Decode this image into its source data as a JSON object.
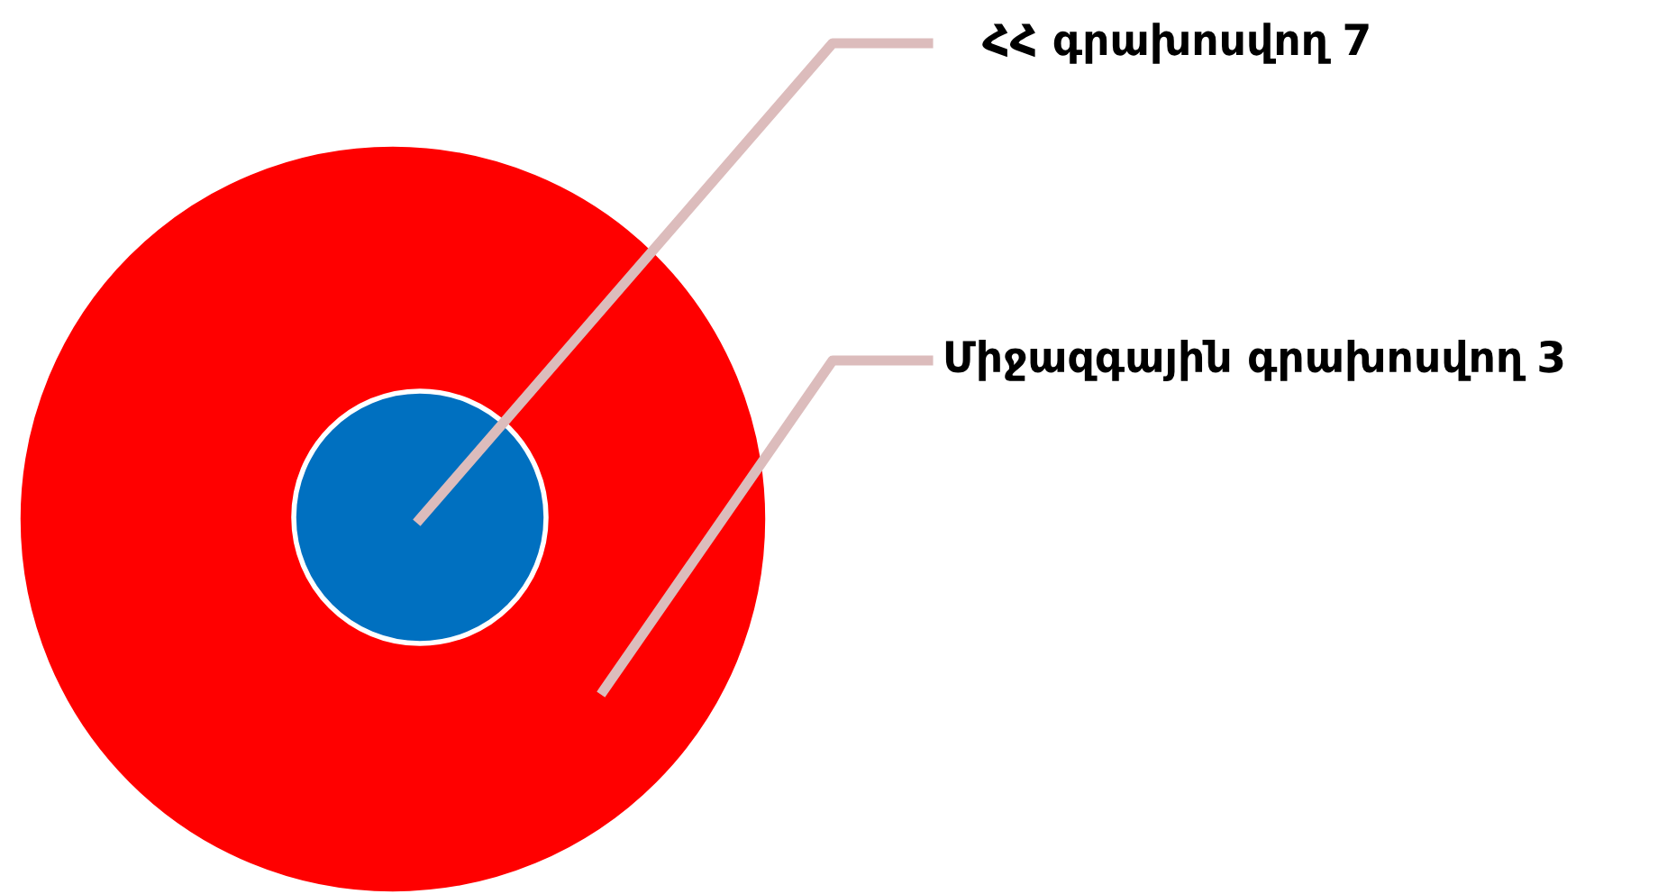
{
  "chart_data": {
    "type": "other",
    "categories": [
      "ՀՀ գրախոսվող",
      "Միջազգային գրախոսվող"
    ],
    "values": [
      7,
      3
    ],
    "colors": [
      "#0070c0",
      "#ff0000"
    ],
    "data_labels": true
  }
}
